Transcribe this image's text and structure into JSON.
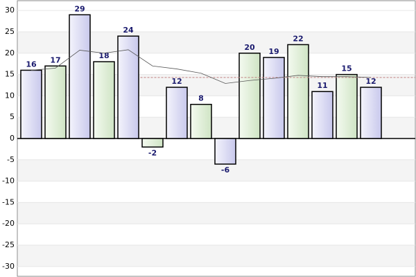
{
  "chart_data": {
    "type": "bar",
    "values": [
      16,
      17,
      29,
      18,
      24,
      -2,
      12,
      8,
      -6,
      20,
      19,
      22,
      11,
      15,
      12
    ],
    "bar_colors": [
      "#d6d6f0",
      "#d8ead0"
    ],
    "line": {
      "values": [
        16,
        16.5,
        20.7,
        20,
        20.8,
        17,
        16.3,
        15.3,
        12.9,
        13.6,
        14.1,
        14.8,
        14.5,
        14.5,
        14.3
      ],
      "color": "#555555"
    },
    "mean_line": {
      "value": 14.3,
      "color": "#c08080"
    },
    "ylim": [
      -32.3,
      32.3
    ],
    "yticks": [
      -30,
      -25,
      -20,
      -15,
      -10,
      -5,
      0,
      5,
      10,
      15,
      20,
      25,
      30
    ],
    "grid": true
  }
}
